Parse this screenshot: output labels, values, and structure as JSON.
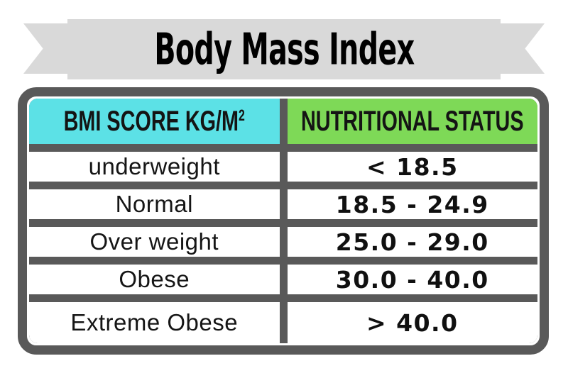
{
  "title": {
    "text": "Body Mass Index"
  },
  "colors": {
    "ribbon": "#d9d9d9",
    "table_border": "#595959",
    "header_left_bg": "#5ce1e6",
    "header_right_bg": "#7ed957",
    "cell_bg": "#ffffff"
  },
  "table": {
    "header": {
      "left": {
        "text": "BMI SCORE KG/M",
        "superscript": "2"
      },
      "right": {
        "text": "NUTRITIONAL STATUS"
      }
    },
    "rows": [
      {
        "label": "underweight",
        "value": "< 18.5"
      },
      {
        "label": "Normal",
        "value": "18.5 - 24.9"
      },
      {
        "label": "Over weight",
        "value": "25.0 - 29.0"
      },
      {
        "label": "Obese",
        "value": "30.0 - 40.0"
      },
      {
        "label": "Extreme Obese",
        "value": "> 40.0"
      }
    ]
  },
  "chart_data": {
    "type": "table",
    "title": "Body Mass Index",
    "columns": [
      "BMI SCORE KG/M2",
      "NUTRITIONAL STATUS"
    ],
    "rows": [
      [
        "underweight",
        "< 18.5"
      ],
      [
        "Normal",
        "18.5 - 24.9"
      ],
      [
        "Over weight",
        "25.0 - 29.0"
      ],
      [
        "Obese",
        "30.0 - 40.0"
      ],
      [
        "Extreme Obese",
        "> 40.0"
      ]
    ]
  }
}
